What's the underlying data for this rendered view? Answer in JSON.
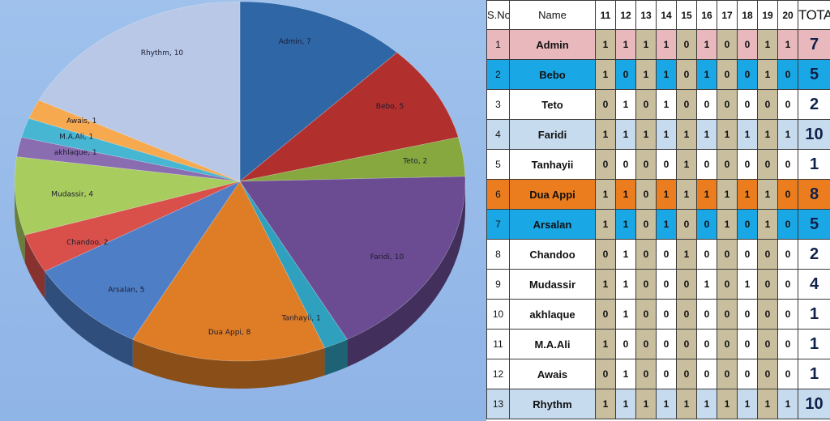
{
  "chart_data": {
    "type": "pie",
    "title": "",
    "slices": [
      {
        "label": "Admin",
        "value": 7,
        "color": "#2e66a6",
        "display": "Admin, 7"
      },
      {
        "label": "Bebo",
        "value": 5,
        "color": "#b12f2c",
        "display": "Bebo, 5"
      },
      {
        "label": "Teto",
        "value": 2,
        "color": "#86a83f",
        "display": "Teto, 2"
      },
      {
        "label": "Faridi",
        "value": 10,
        "color": "#6b4c92",
        "display": "Faridi, 10"
      },
      {
        "label": "Tanhayii",
        "value": 1,
        "color": "#2fa0bd",
        "display": "Tanhayii, 1"
      },
      {
        "label": "Dua Appi",
        "value": 8,
        "color": "#de7d26",
        "display": "Dua Appi, 8"
      },
      {
        "label": "Arsalan",
        "value": 5,
        "color": "#4e7ec6",
        "display": "Arsalan, 5"
      },
      {
        "label": "Chandoo",
        "value": 2,
        "color": "#d9504b",
        "display": "Chandoo, 2"
      },
      {
        "label": "Mudassir",
        "value": 4,
        "color": "#a9cc5e",
        "display": "Mudassir, 4"
      },
      {
        "label": "akhlaque",
        "value": 1,
        "color": "#8a6cb0",
        "display": "akhlaque, 1"
      },
      {
        "label": "M.A.Ali",
        "value": 1,
        "color": "#47b6d2",
        "display": "M.A.Ali, 1"
      },
      {
        "label": "Awais",
        "value": 1,
        "color": "#f6a94e",
        "display": "Awais, 1"
      },
      {
        "label": "Rhythm",
        "value": 10,
        "color": "#b8c8e6",
        "display": "Rhythm, 10"
      }
    ]
  },
  "table": {
    "headers": {
      "sno": "S.No",
      "name": "Name",
      "days": [
        "11",
        "12",
        "13",
        "14",
        "15",
        "16",
        "17",
        "18",
        "19",
        "20"
      ],
      "total": "TOTAL"
    },
    "shaded_day_columns": [
      0,
      2,
      4,
      6,
      8
    ],
    "rows": [
      {
        "sno": "1",
        "name": "Admin",
        "bits": [
          "1",
          "1",
          "1",
          "1",
          "0",
          "1",
          "0",
          "0",
          "1",
          "1"
        ],
        "total": "7",
        "color": "#e9b8bd",
        "total_color": "#e9b8bd"
      },
      {
        "sno": "2",
        "name": "Bebo",
        "bits": [
          "1",
          "0",
          "1",
          "1",
          "0",
          "1",
          "0",
          "0",
          "1",
          "0"
        ],
        "total": "5",
        "color": "#1aa7e6",
        "total_color": "#1aa7e6"
      },
      {
        "sno": "3",
        "name": "Teto",
        "bits": [
          "0",
          "1",
          "0",
          "1",
          "0",
          "0",
          "0",
          "0",
          "0",
          "0"
        ],
        "total": "2",
        "color": "#ffffff",
        "total_color": "#ffffff"
      },
      {
        "sno": "4",
        "name": "Faridi",
        "bits": [
          "1",
          "1",
          "1",
          "1",
          "1",
          "1",
          "1",
          "1",
          "1",
          "1"
        ],
        "total": "10",
        "color": "#c7dbef",
        "total_color": "#c7dbef"
      },
      {
        "sno": "5",
        "name": "Tanhayii",
        "bits": [
          "0",
          "0",
          "0",
          "0",
          "1",
          "0",
          "0",
          "0",
          "0",
          "0"
        ],
        "total": "1",
        "color": "#ffffff",
        "total_color": "#ffffff"
      },
      {
        "sno": "6",
        "name": "Dua Appi",
        "bits": [
          "1",
          "1",
          "0",
          "1",
          "1",
          "1",
          "1",
          "1",
          "1",
          "0"
        ],
        "total": "8",
        "color": "#ec7d1e",
        "total_color": "#ec7d1e"
      },
      {
        "sno": "7",
        "name": "Arsalan",
        "bits": [
          "1",
          "1",
          "0",
          "1",
          "0",
          "0",
          "1",
          "0",
          "1",
          "0"
        ],
        "total": "5",
        "color": "#1aa7e6",
        "total_color": "#1aa7e6"
      },
      {
        "sno": "8",
        "name": "Chandoo",
        "bits": [
          "0",
          "1",
          "0",
          "0",
          "1",
          "0",
          "0",
          "0",
          "0",
          "0"
        ],
        "total": "2",
        "color": "#ffffff",
        "total_color": "#ffffff"
      },
      {
        "sno": "9",
        "name": "Mudassir",
        "bits": [
          "1",
          "1",
          "0",
          "0",
          "0",
          "1",
          "0",
          "1",
          "0",
          "0"
        ],
        "total": "4",
        "color": "#ffffff",
        "total_color": "#ffffff"
      },
      {
        "sno": "10",
        "name": "akhlaque",
        "bits": [
          "0",
          "1",
          "0",
          "0",
          "0",
          "0",
          "0",
          "0",
          "0",
          "0"
        ],
        "total": "1",
        "color": "#ffffff",
        "total_color": "#ffffff"
      },
      {
        "sno": "11",
        "name": "M.A.Ali",
        "bits": [
          "1",
          "0",
          "0",
          "0",
          "0",
          "0",
          "0",
          "0",
          "0",
          "0"
        ],
        "total": "1",
        "color": "#ffffff",
        "total_color": "#ffffff"
      },
      {
        "sno": "12",
        "name": "Awais",
        "bits": [
          "0",
          "1",
          "0",
          "0",
          "0",
          "0",
          "0",
          "0",
          "0",
          "0"
        ],
        "total": "1",
        "color": "#ffffff",
        "total_color": "#ffffff"
      },
      {
        "sno": "13",
        "name": "Rhythm",
        "bits": [
          "1",
          "1",
          "1",
          "1",
          "1",
          "1",
          "1",
          "1",
          "1",
          "1"
        ],
        "total": "10",
        "color": "#c7dbef",
        "total_color": "#c7dbef"
      }
    ]
  }
}
